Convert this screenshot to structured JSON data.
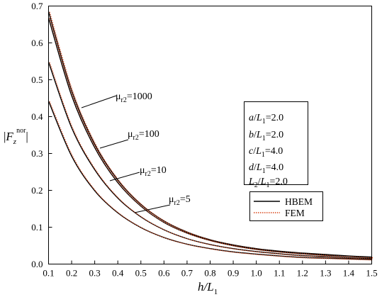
{
  "chart_data": {
    "type": "line",
    "xlabel": "h/L1",
    "ylabel": "|Fz^nor|",
    "xlim": [
      0.1,
      1.5
    ],
    "ylim": [
      0.0,
      0.7
    ],
    "xticks": [
      0.1,
      0.2,
      0.3,
      0.4,
      0.5,
      0.6,
      0.7,
      0.8,
      0.9,
      1.0,
      1.1,
      1.2,
      1.3,
      1.4,
      1.5
    ],
    "xtick_labels": [
      "0.1",
      "0.2",
      "0.3",
      "0.4",
      "0.5",
      "0.6",
      "0.7",
      "0.8",
      "0.9",
      "1.0",
      "1.1",
      "1.2",
      "1.3",
      "1.4",
      "1.5"
    ],
    "yticks": [
      0.0,
      0.1,
      0.2,
      0.3,
      0.4,
      0.5,
      0.6,
      0.7
    ],
    "ytick_labels": [
      "0.0",
      "0.1",
      "0.2",
      "0.3",
      "0.4",
      "0.5",
      "0.6",
      "0.7"
    ],
    "grid": false,
    "x": [
      0.1,
      0.2,
      0.3,
      0.4,
      0.5,
      0.6,
      0.7,
      0.8,
      0.9,
      1.0,
      1.1,
      1.2,
      1.3,
      1.4,
      1.5
    ],
    "series": [
      {
        "curve": "μr2=1000",
        "method": "HBEM",
        "values": [
          0.685,
          0.47,
          0.325,
          0.228,
          0.162,
          0.117,
          0.087,
          0.066,
          0.052,
          0.042,
          0.035,
          0.03,
          0.026,
          0.022,
          0.019
        ]
      },
      {
        "curve": "μr2=100",
        "method": "HBEM",
        "values": [
          0.668,
          0.457,
          0.316,
          0.221,
          0.157,
          0.113,
          0.084,
          0.064,
          0.05,
          0.04,
          0.033,
          0.028,
          0.024,
          0.021,
          0.018
        ]
      },
      {
        "curve": "μr2=10",
        "method": "HBEM",
        "values": [
          0.548,
          0.37,
          0.256,
          0.179,
          0.128,
          0.093,
          0.069,
          0.053,
          0.042,
          0.034,
          0.028,
          0.023,
          0.02,
          0.017,
          0.015
        ]
      },
      {
        "curve": "μr2=5",
        "method": "HBEM",
        "values": [
          0.442,
          0.293,
          0.199,
          0.139,
          0.099,
          0.072,
          0.054,
          0.042,
          0.033,
          0.027,
          0.022,
          0.018,
          0.016,
          0.014,
          0.012
        ]
      }
    ],
    "curve_labels": [
      {
        "base": "μ",
        "sub": "r2",
        "text": "=1000"
      },
      {
        "base": "μ",
        "sub": "r2",
        "text": "=100"
      },
      {
        "base": "μ",
        "sub": "r2",
        "text": "=10"
      },
      {
        "base": "μ",
        "sub": "r2",
        "text": "=5"
      }
    ],
    "params": [
      {
        "var": "a",
        "text": "=2.0"
      },
      {
        "var": "b",
        "text": "=2.0"
      },
      {
        "var": "c",
        "text": "=4.0"
      },
      {
        "var": "d",
        "text": "=4.0"
      },
      {
        "var": "L",
        "sub": "2",
        "text": "=2.0"
      }
    ],
    "legend": {
      "position": "right",
      "entries": [
        {
          "name": "HBEM",
          "color": "#000000",
          "style": "solid"
        },
        {
          "name": "FEM",
          "color": "#d9481c",
          "style": "dotted"
        }
      ]
    },
    "colors": {
      "hbem": "#000000",
      "fem": "#d9481c"
    }
  }
}
